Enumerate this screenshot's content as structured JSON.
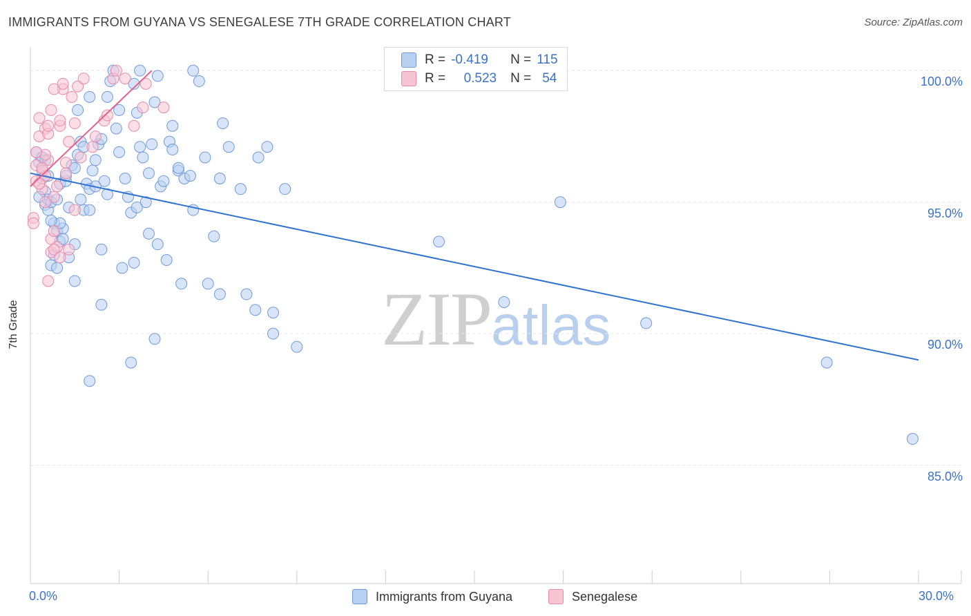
{
  "header": {
    "title": "IMMIGRANTS FROM GUYANA VS SENEGALESE 7TH GRADE CORRELATION CHART",
    "source": "Source: ZipAtlas.com"
  },
  "watermark": {
    "part1": "ZIP",
    "part2": "atlas"
  },
  "legend_stats": {
    "rows": [
      {
        "r_label": "R =",
        "r_value": "-0.419",
        "n_label": "N =",
        "n_value": "115"
      },
      {
        "r_label": "R =",
        "r_value": "0.523",
        "n_label": "N =",
        "n_value": "54"
      }
    ]
  },
  "bottom_legend": {
    "series1": "Immigrants from Guyana",
    "series2": "Senegalese"
  },
  "colors": {
    "blue_fill": "#b8d0f2",
    "blue_stroke": "#6f9ad8",
    "blue_line": "#2f72cf",
    "pink_fill": "#f7c4d4",
    "pink_stroke": "#e68aa8",
    "pink_line": "#e5608c",
    "tick_text": "#3a72c9"
  },
  "chart_data": {
    "type": "scatter",
    "title": "IMMIGRANTS FROM GUYANA VS SENEGALESE 7TH GRADE CORRELATION CHART",
    "xlabel": "",
    "ylabel": "7th Grade",
    "xlim": [
      0,
      30
    ],
    "ylim": [
      80.5,
      100.9
    ],
    "x_tick_labels": [
      {
        "value": 0,
        "label": "0.0%"
      },
      {
        "value": 30,
        "label": "30.0%"
      }
    ],
    "y_tick_labels": [
      {
        "value": 100,
        "label": "100.0%"
      },
      {
        "value": 95,
        "label": "95.0%"
      },
      {
        "value": 90,
        "label": "90.0%"
      },
      {
        "value": 85,
        "label": "85.0%"
      }
    ],
    "x_minor_ticks": [
      3,
      6,
      9,
      12,
      15,
      18,
      21,
      24,
      27,
      30
    ],
    "grid": true,
    "series": [
      {
        "name": "Immigrants from Guyana",
        "color": "blue",
        "R": -0.419,
        "N": 115,
        "trend": {
          "x0": 0.0,
          "y0": 96.1,
          "x1": 30.0,
          "y1": 89.0
        },
        "points": [
          [
            0.2,
            96.9
          ],
          [
            0.3,
            96.5
          ],
          [
            0.4,
            95.9
          ],
          [
            0.4,
            96.2
          ],
          [
            0.5,
            95.4
          ],
          [
            0.5,
            94.9
          ],
          [
            0.6,
            95.1
          ],
          [
            0.6,
            94.7
          ],
          [
            0.7,
            95.0
          ],
          [
            0.8,
            93.0
          ],
          [
            0.7,
            92.6
          ],
          [
            0.8,
            94.2
          ],
          [
            0.9,
            93.9
          ],
          [
            1.0,
            93.5
          ],
          [
            1.1,
            94.0
          ],
          [
            1.0,
            95.7
          ],
          [
            1.2,
            95.8
          ],
          [
            1.3,
            94.8
          ],
          [
            1.4,
            96.4
          ],
          [
            1.5,
            96.3
          ],
          [
            1.6,
            96.8
          ],
          [
            1.7,
            95.1
          ],
          [
            1.8,
            94.7
          ],
          [
            1.7,
            97.3
          ],
          [
            1.9,
            95.7
          ],
          [
            2.0,
            95.5
          ],
          [
            2.1,
            96.2
          ],
          [
            2.2,
            96.6
          ],
          [
            2.3,
            97.2
          ],
          [
            2.5,
            95.8
          ],
          [
            2.7,
            99.6
          ],
          [
            2.6,
            99.0
          ],
          [
            2.9,
            97.8
          ],
          [
            3.0,
            98.5
          ],
          [
            3.2,
            95.9
          ],
          [
            3.3,
            95.2
          ],
          [
            3.4,
            94.6
          ],
          [
            3.5,
            99.5
          ],
          [
            3.6,
            98.4
          ],
          [
            3.7,
            97.1
          ],
          [
            3.8,
            96.7
          ],
          [
            3.9,
            95.0
          ],
          [
            4.0,
            96.1
          ],
          [
            4.1,
            97.2
          ],
          [
            4.2,
            98.8
          ],
          [
            4.3,
            99.8
          ],
          [
            4.4,
            95.6
          ],
          [
            4.5,
            95.8
          ],
          [
            4.7,
            97.3
          ],
          [
            4.8,
            97.9
          ],
          [
            5.0,
            96.2
          ],
          [
            5.2,
            95.9
          ],
          [
            5.4,
            96.0
          ],
          [
            5.5,
            94.7
          ],
          [
            5.7,
            99.6
          ],
          [
            5.9,
            96.7
          ],
          [
            6.2,
            93.7
          ],
          [
            6.5,
            98.0
          ],
          [
            6.7,
            97.1
          ],
          [
            7.1,
            95.5
          ],
          [
            7.7,
            96.7
          ],
          [
            8.0,
            97.1
          ],
          [
            8.6,
            95.5
          ],
          [
            9.0,
            89.5
          ],
          [
            3.1,
            92.5
          ],
          [
            2.4,
            93.2
          ],
          [
            1.5,
            93.4
          ],
          [
            0.9,
            92.5
          ],
          [
            1.2,
            96.0
          ],
          [
            2.0,
            94.7
          ],
          [
            2.4,
            97.4
          ],
          [
            3.6,
            94.8
          ],
          [
            4.0,
            93.8
          ],
          [
            4.3,
            93.4
          ],
          [
            4.6,
            92.8
          ],
          [
            5.1,
            91.9
          ],
          [
            6.0,
            91.9
          ],
          [
            6.4,
            91.5
          ],
          [
            7.3,
            91.5
          ],
          [
            7.6,
            90.9
          ],
          [
            8.2,
            90.8
          ],
          [
            8.2,
            90.0
          ],
          [
            1.5,
            92.0
          ],
          [
            2.4,
            91.1
          ],
          [
            3.5,
            92.7
          ],
          [
            4.2,
            89.8
          ],
          [
            3.4,
            88.9
          ],
          [
            2.0,
            88.2
          ],
          [
            0.5,
            96.6
          ],
          [
            0.3,
            95.2
          ],
          [
            0.6,
            96.0
          ],
          [
            1.0,
            94.2
          ],
          [
            1.6,
            98.5
          ],
          [
            2.0,
            99.0
          ],
          [
            2.8,
            100.0
          ],
          [
            3.7,
            100.0
          ],
          [
            5.5,
            100.0
          ],
          [
            6.4,
            95.9
          ],
          [
            17.9,
            95.0
          ],
          [
            13.8,
            93.5
          ],
          [
            16.0,
            91.2
          ],
          [
            20.8,
            90.4
          ],
          [
            26.9,
            88.9
          ],
          [
            29.8,
            86.0
          ],
          [
            0.9,
            95.1
          ],
          [
            1.1,
            93.6
          ],
          [
            1.3,
            92.9
          ],
          [
            2.6,
            95.3
          ],
          [
            3.0,
            96.9
          ],
          [
            1.8,
            97.1
          ],
          [
            4.8,
            97.0
          ],
          [
            5.0,
            96.3
          ],
          [
            0.4,
            96.7
          ],
          [
            0.7,
            94.3
          ],
          [
            2.2,
            95.6
          ]
        ]
      },
      {
        "name": "Senegalese",
        "color": "pink",
        "R": 0.523,
        "N": 54,
        "trend": {
          "x0": 0.0,
          "y0": 95.6,
          "x1": 4.1,
          "y1": 100.0
        },
        "points": [
          [
            0.1,
            94.4
          ],
          [
            0.1,
            94.2
          ],
          [
            0.2,
            95.8
          ],
          [
            0.2,
            96.4
          ],
          [
            0.3,
            97.5
          ],
          [
            0.3,
            98.2
          ],
          [
            0.4,
            96.2
          ],
          [
            0.4,
            95.5
          ],
          [
            0.5,
            97.8
          ],
          [
            0.5,
            96.0
          ],
          [
            0.6,
            97.6
          ],
          [
            0.6,
            96.6
          ],
          [
            0.7,
            93.6
          ],
          [
            0.7,
            93.1
          ],
          [
            0.8,
            93.9
          ],
          [
            0.8,
            95.2
          ],
          [
            0.9,
            93.3
          ],
          [
            0.9,
            95.6
          ],
          [
            1.0,
            97.9
          ],
          [
            1.0,
            98.1
          ],
          [
            1.1,
            99.3
          ],
          [
            1.2,
            96.1
          ],
          [
            1.3,
            97.3
          ],
          [
            1.4,
            99.0
          ],
          [
            1.5,
            98.0
          ],
          [
            1.6,
            99.4
          ],
          [
            1.7,
            96.7
          ],
          [
            1.8,
            99.7
          ],
          [
            2.1,
            97.1
          ],
          [
            2.2,
            97.5
          ],
          [
            2.5,
            98.1
          ],
          [
            2.6,
            98.3
          ],
          [
            2.8,
            99.7
          ],
          [
            2.9,
            100.0
          ],
          [
            3.2,
            99.7
          ],
          [
            3.5,
            97.9
          ],
          [
            3.8,
            98.6
          ],
          [
            3.9,
            99.5
          ],
          [
            4.5,
            98.6
          ],
          [
            0.6,
            92.0
          ],
          [
            0.8,
            93.2
          ],
          [
            1.0,
            92.9
          ],
          [
            1.3,
            93.2
          ],
          [
            1.5,
            94.7
          ],
          [
            0.4,
            96.3
          ],
          [
            0.5,
            96.8
          ],
          [
            0.6,
            97.9
          ],
          [
            0.7,
            98.5
          ],
          [
            0.8,
            99.3
          ],
          [
            1.1,
            99.5
          ],
          [
            1.2,
            96.5
          ],
          [
            0.2,
            96.9
          ],
          [
            0.3,
            95.7
          ],
          [
            0.5,
            95.0
          ]
        ]
      }
    ]
  }
}
